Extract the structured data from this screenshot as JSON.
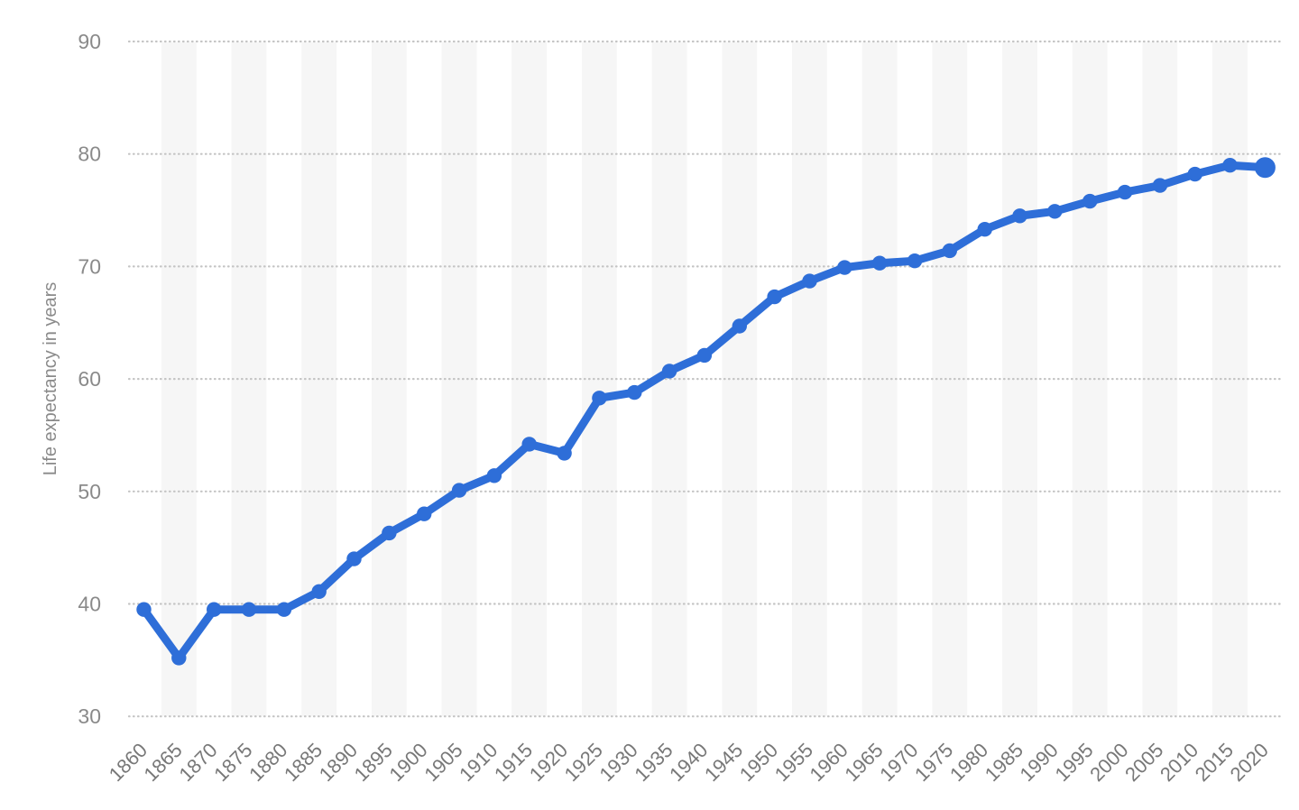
{
  "chart_data": {
    "type": "line",
    "title": "",
    "xlabel": "",
    "ylabel": "Life expectancy in years",
    "x": [
      1860,
      1865,
      1870,
      1875,
      1880,
      1885,
      1890,
      1895,
      1900,
      1905,
      1910,
      1915,
      1920,
      1925,
      1930,
      1935,
      1940,
      1945,
      1950,
      1955,
      1960,
      1965,
      1970,
      1975,
      1980,
      1985,
      1990,
      1995,
      2000,
      2005,
      2010,
      2015,
      2020
    ],
    "series": [
      {
        "name": "Life expectancy",
        "values": [
          39.5,
          35.2,
          39.5,
          39.5,
          39.5,
          41.1,
          44.0,
          46.3,
          48.0,
          50.1,
          51.4,
          54.2,
          53.4,
          58.3,
          58.8,
          60.7,
          62.1,
          64.7,
          67.3,
          68.7,
          69.9,
          70.3,
          70.5,
          71.4,
          73.3,
          74.5,
          74.9,
          75.8,
          76.6,
          77.2,
          78.2,
          79.0,
          78.8
        ]
      }
    ],
    "ylim": [
      30,
      90
    ],
    "yticks": [
      30,
      40,
      50,
      60,
      70,
      80,
      90
    ],
    "grid": "horizontal-dotted",
    "plot_bands": "alternating-vertical-on-odd-year-columns",
    "legend": "none",
    "marker": "filled-circle",
    "last_point_emphasized": true
  },
  "colors": {
    "line": "#2e6ed8",
    "marker": "#2e6ed8",
    "gridline": "#c4c4c4",
    "band": "#f6f6f6",
    "y_tick_text": "#8a8a8a",
    "x_tick_text": "#787878",
    "axis_title_text": "#8a8a8a",
    "background": "#ffffff"
  }
}
